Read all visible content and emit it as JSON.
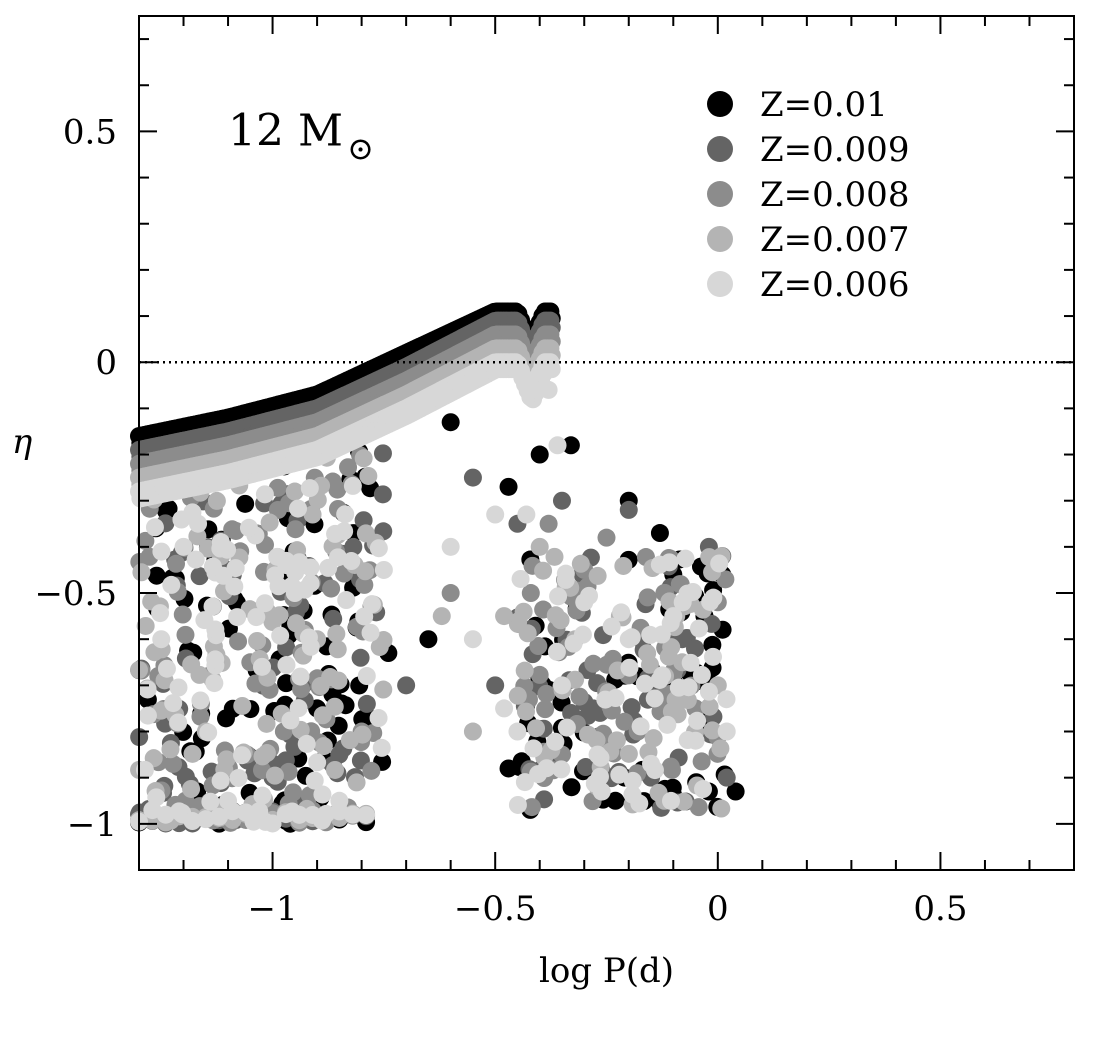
{
  "chart_data": {
    "type": "scatter",
    "title": "",
    "xlabel": "log P(d)",
    "ylabel": "η",
    "xlim": [
      -1.3,
      0.8
    ],
    "ylim": [
      -1.1,
      0.75
    ],
    "x_ticks": [
      -1,
      -0.5,
      0,
      0.5
    ],
    "x_tick_labels": [
      "−1",
      "−0.5",
      "0",
      "0.5"
    ],
    "y_ticks": [
      -1,
      -0.5,
      0,
      0.5
    ],
    "y_tick_labels": [
      "−1",
      "−0.5",
      "0",
      "0.5"
    ],
    "x_minor_step": 0.1,
    "y_minor_step": 0.1,
    "grid": false,
    "legend_position": "top-right",
    "reference_line": {
      "y": 0,
      "style": "dotted"
    },
    "annotation": {
      "text": "12 M",
      "subscript": "⊙"
    },
    "series": [
      {
        "name": "Z=0.01",
        "color": "#000000",
        "upper_envelope": [
          [
            -1.3,
            -0.16
          ],
          [
            -1.1,
            -0.12
          ],
          [
            -0.9,
            -0.07
          ],
          [
            -0.7,
            0.02
          ],
          [
            -0.5,
            0.11
          ],
          [
            -0.45,
            0.11
          ],
          [
            -0.42,
            0.04
          ],
          [
            -0.39,
            0.11
          ],
          [
            -0.37,
            0.11
          ]
        ],
        "points": [
          [
            -0.33,
            -0.18
          ],
          [
            -0.4,
            -0.2
          ],
          [
            -0.47,
            -0.27
          ],
          [
            -0.6,
            -0.13
          ],
          [
            -0.47,
            -0.88
          ],
          [
            -0.1,
            -0.46
          ],
          [
            -0.03,
            -0.55
          ],
          [
            0.01,
            -0.46
          ],
          [
            0.04,
            -0.93
          ],
          [
            -0.2,
            -0.3
          ],
          [
            -0.13,
            -0.37
          ],
          [
            -0.74,
            -0.63
          ],
          [
            -0.9,
            -0.75
          ],
          [
            -0.65,
            -0.6
          ],
          [
            -0.02,
            -0.93
          ],
          [
            -0.23,
            -0.95
          ]
        ]
      },
      {
        "name": "Z=0.009",
        "color": "#646464",
        "upper_envelope": [
          [
            -1.3,
            -0.19
          ],
          [
            -1.1,
            -0.15
          ],
          [
            -0.9,
            -0.1
          ],
          [
            -0.7,
            -0.01
          ],
          [
            -0.5,
            0.09
          ],
          [
            -0.45,
            0.09
          ],
          [
            -0.42,
            0.02
          ],
          [
            -0.39,
            0.09
          ],
          [
            -0.37,
            0.09
          ]
        ],
        "points": [
          [
            -0.35,
            -0.3
          ],
          [
            -0.45,
            -0.35
          ],
          [
            -0.55,
            -0.25
          ],
          [
            -0.2,
            -0.32
          ],
          [
            -0.02,
            -0.4
          ],
          [
            0.01,
            -0.42
          ],
          [
            -0.08,
            -0.6
          ],
          [
            -0.28,
            -0.75
          ],
          [
            -0.7,
            -0.7
          ],
          [
            -0.85,
            -0.85
          ],
          [
            -1.0,
            -0.9
          ],
          [
            -0.5,
            -0.7
          ],
          [
            -0.15,
            -0.9
          ],
          [
            0.02,
            -0.9
          ]
        ]
      },
      {
        "name": "Z=0.008",
        "color": "#8c8c8c",
        "upper_envelope": [
          [
            -1.3,
            -0.22
          ],
          [
            -1.1,
            -0.18
          ],
          [
            -0.9,
            -0.13
          ],
          [
            -0.7,
            -0.04
          ],
          [
            -0.5,
            0.06
          ],
          [
            -0.45,
            0.06
          ],
          [
            -0.42,
            -0.01
          ],
          [
            -0.39,
            0.06
          ],
          [
            -0.37,
            0.06
          ]
        ],
        "points": [
          [
            -0.38,
            -0.35
          ],
          [
            -0.42,
            -0.5
          ],
          [
            -0.3,
            -0.45
          ],
          [
            -0.25,
            -0.38
          ],
          [
            -0.12,
            -0.5
          ],
          [
            0.0,
            -0.52
          ],
          [
            -0.6,
            -0.5
          ],
          [
            -0.8,
            -0.8
          ],
          [
            -1.05,
            -0.65
          ],
          [
            -0.35,
            -0.85
          ],
          [
            -0.18,
            -0.8
          ],
          [
            -0.05,
            -0.75
          ]
        ]
      },
      {
        "name": "Z=0.007",
        "color": "#b4b4b4",
        "upper_envelope": [
          [
            -1.3,
            -0.25
          ],
          [
            -1.1,
            -0.21
          ],
          [
            -0.9,
            -0.16
          ],
          [
            -0.7,
            -0.07
          ],
          [
            -0.5,
            0.03
          ],
          [
            -0.45,
            0.03
          ],
          [
            -0.42,
            -0.04
          ],
          [
            -0.39,
            0.03
          ],
          [
            -0.37,
            0.03
          ]
        ],
        "points": [
          [
            -0.4,
            -0.4
          ],
          [
            -0.48,
            -0.55
          ],
          [
            -0.32,
            -0.6
          ],
          [
            -0.22,
            -0.55
          ],
          [
            -0.08,
            -0.65
          ],
          [
            0.0,
            -0.7
          ],
          [
            -0.62,
            -0.55
          ],
          [
            -0.9,
            -0.6
          ],
          [
            -1.15,
            -0.8
          ],
          [
            -0.55,
            -0.8
          ],
          [
            -0.27,
            -0.92
          ],
          [
            -0.12,
            -0.95
          ]
        ]
      },
      {
        "name": "Z=0.006",
        "color": "#d7d7d7",
        "upper_envelope": [
          [
            -1.3,
            -0.28
          ],
          [
            -1.1,
            -0.24
          ],
          [
            -0.9,
            -0.19
          ],
          [
            -0.7,
            -0.1
          ],
          [
            -0.5,
            0.0
          ],
          [
            -0.45,
            0.0
          ],
          [
            -0.42,
            -0.07
          ],
          [
            -0.39,
            0.0
          ],
          [
            -0.37,
            0.0
          ]
        ],
        "points": [
          [
            -0.41,
            -0.06
          ],
          [
            -0.38,
            -0.06
          ],
          [
            -0.36,
            -0.18
          ],
          [
            -0.43,
            -0.33
          ],
          [
            -0.5,
            -0.33
          ],
          [
            -0.55,
            -0.6
          ],
          [
            -0.48,
            -0.75
          ],
          [
            -0.35,
            -0.7
          ],
          [
            -0.3,
            -0.52
          ],
          [
            -0.2,
            -0.6
          ],
          [
            -0.1,
            -0.55
          ],
          [
            -0.01,
            -0.51
          ],
          [
            -0.45,
            -0.8
          ],
          [
            -0.27,
            -0.85
          ],
          [
            -0.15,
            -0.87
          ],
          [
            -0.05,
            -0.82
          ],
          [
            0.02,
            -0.8
          ],
          [
            -0.6,
            -0.4
          ],
          [
            -0.75,
            -0.45
          ],
          [
            -0.95,
            -0.5
          ],
          [
            -1.2,
            -0.4
          ],
          [
            -1.25,
            -0.6
          ],
          [
            -1.1,
            -0.95
          ],
          [
            -0.85,
            -0.95
          ]
        ]
      }
    ]
  }
}
